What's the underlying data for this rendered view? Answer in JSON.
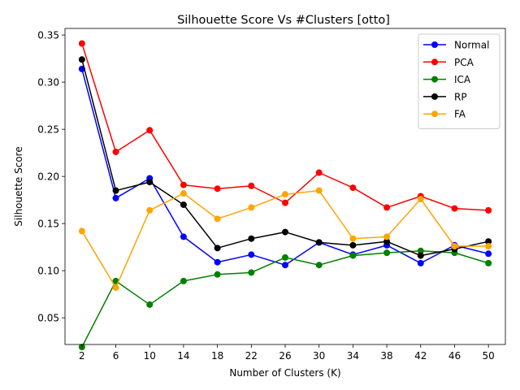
{
  "chart_data": {
    "type": "line",
    "title": "Silhouette Score Vs #Clusters [otto]",
    "xlabel": "Number of Clusters (K)",
    "ylabel": "Silhouette Score",
    "x": [
      2,
      6,
      10,
      14,
      18,
      22,
      26,
      30,
      34,
      38,
      42,
      46,
      50
    ],
    "x_ticks": [
      "2",
      "6",
      "10",
      "14",
      "18",
      "22",
      "26",
      "30",
      "34",
      "38",
      "42",
      "46",
      "50"
    ],
    "y_ticks": [
      0.05,
      0.1,
      0.15,
      0.2,
      0.25,
      0.3,
      0.35
    ],
    "y_tick_labels": [
      "0.05",
      "0.10",
      "0.15",
      "0.20",
      "0.25",
      "0.30",
      "0.35"
    ],
    "xlim": [
      0.0,
      52.0
    ],
    "ylim": [
      0.0217,
      0.357
    ],
    "legend_position": "top-right",
    "grid": false,
    "series": [
      {
        "name": "Normal",
        "color": "#0000ff",
        "values": [
          0.314,
          0.177,
          0.198,
          0.136,
          0.109,
          0.117,
          0.106,
          0.13,
          0.117,
          0.127,
          0.108,
          0.127,
          0.118
        ]
      },
      {
        "name": "PCA",
        "color": "#ff0000",
        "values": [
          0.341,
          0.226,
          0.249,
          0.191,
          0.187,
          0.19,
          0.172,
          0.204,
          0.188,
          0.167,
          0.179,
          0.166,
          0.164
        ]
      },
      {
        "name": "ICA",
        "color": "#008000",
        "values": [
          0.019,
          0.089,
          0.064,
          0.089,
          0.096,
          0.098,
          0.114,
          0.106,
          0.116,
          0.119,
          0.121,
          0.119,
          0.108
        ]
      },
      {
        "name": "RP",
        "color": "#000000",
        "values": [
          0.324,
          0.185,
          0.194,
          0.17,
          0.124,
          0.134,
          0.141,
          0.13,
          0.127,
          0.131,
          0.116,
          0.123,
          0.131
        ]
      },
      {
        "name": "FA",
        "color": "#ffa500",
        "values": [
          0.142,
          0.082,
          0.164,
          0.182,
          0.155,
          0.167,
          0.181,
          0.185,
          0.134,
          0.136,
          0.176,
          0.126,
          0.126
        ]
      }
    ]
  }
}
